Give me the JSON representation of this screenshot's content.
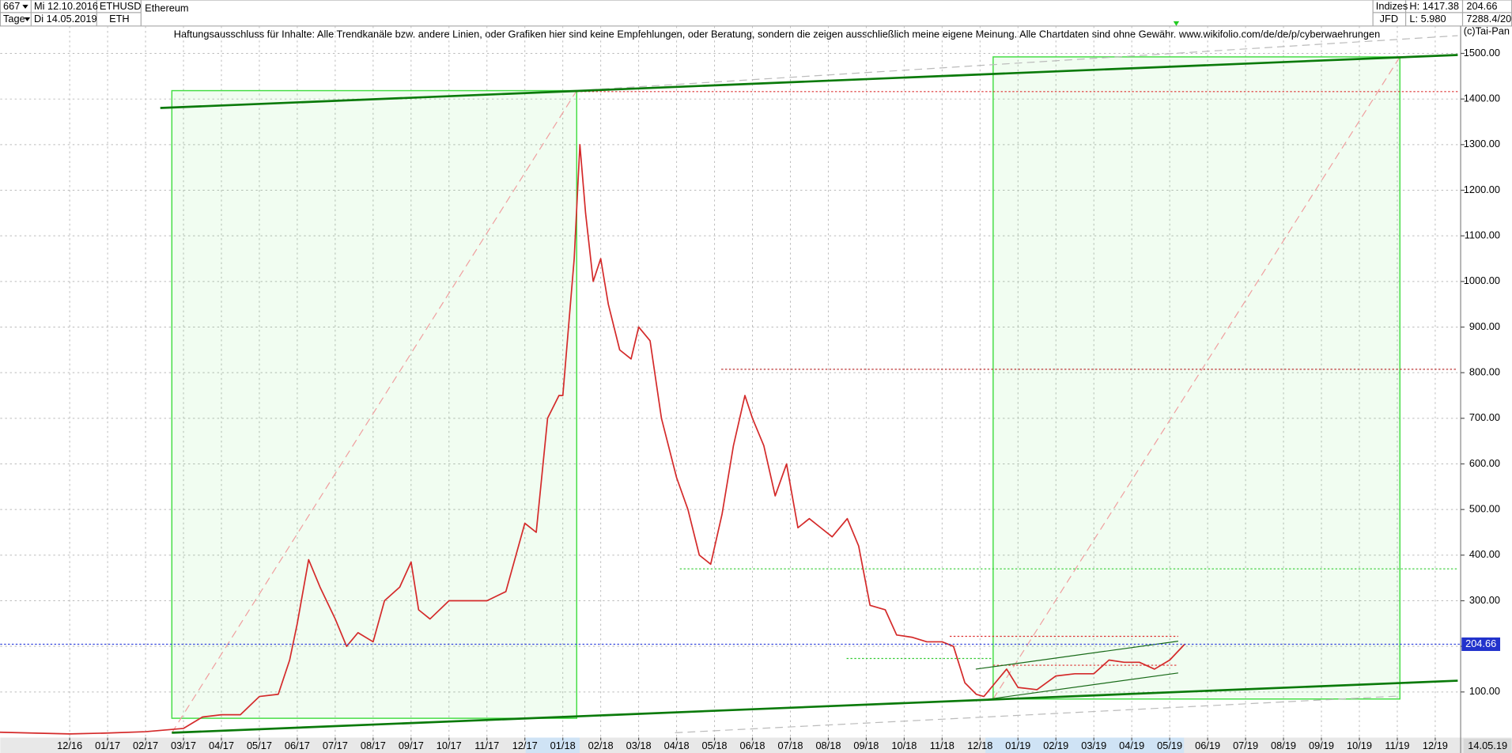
{
  "header": {
    "bars": "667",
    "start_date": "Mi 12.10.2016",
    "period": "Tage",
    "end_date": "Di 14.05.2019",
    "symbol": "ETHUSD",
    "short": "ETH",
    "name": "Ethereum",
    "market": "Indizes",
    "broker": "JFD",
    "high": "H: 1417.38",
    "low": "L: 5.980",
    "last": "204.66",
    "ratio": "7288.4/20",
    "copyright": "(c)Tai-Pan",
    "disclaimer": "Haftungsausschluss für Inhalte: Alle Trendkanäle bzw. andere Linien, oder Grafiken hier sind keine Empfehlungen, oder Beratung, sondern die zeigen ausschließlich meine eigene Meinung. Alle Chartdaten sind ohne Gewähr.  www.wikifolio.com/de/de/p/cyberwaehrungen"
  },
  "chart_data": {
    "type": "line",
    "color": "#d42a2a",
    "grid": true,
    "x": [
      -2,
      -1,
      0,
      1,
      2,
      3,
      3.5,
      4,
      4.5,
      5,
      5.5,
      5.8,
      6,
      6.3,
      6.6,
      7,
      7.3,
      7.6,
      8,
      8.3,
      8.7,
      9,
      9.2,
      9.5,
      10,
      10.5,
      11,
      11.5,
      12,
      12.3,
      12.6,
      12.9,
      13,
      13.3,
      13.45,
      13.6,
      13.8,
      14,
      14.2,
      14.5,
      14.8,
      15,
      15.3,
      15.6,
      16,
      16.3,
      16.6,
      16.9,
      17.2,
      17.5,
      17.8,
      18,
      18.3,
      18.6,
      18.9,
      19.2,
      19.5,
      19.8,
      20.1,
      20.5,
      20.8,
      21.1,
      21.5,
      21.8,
      22.2,
      22.6,
      23,
      23.3,
      23.6,
      23.9,
      24.1,
      24.4,
      24.7,
      25,
      25.5,
      26,
      26.5,
      27,
      27.4,
      27.8,
      28.2,
      28.6,
      29,
      29.4
    ],
    "values": [
      12,
      10,
      8,
      10,
      13,
      20,
      45,
      50,
      50,
      90,
      95,
      170,
      250,
      390,
      330,
      260,
      200,
      230,
      210,
      300,
      330,
      385,
      280,
      260,
      300,
      300,
      300,
      320,
      470,
      450,
      700,
      750,
      750,
      1050,
      1300,
      1150,
      1000,
      1050,
      950,
      850,
      830,
      900,
      870,
      700,
      570,
      500,
      400,
      380,
      490,
      640,
      750,
      700,
      640,
      530,
      600,
      460,
      480,
      460,
      440,
      480,
      420,
      290,
      280,
      225,
      220,
      210,
      210,
      200,
      120,
      95,
      90,
      120,
      150,
      110,
      105,
      135,
      140,
      140,
      170,
      165,
      165,
      150,
      170,
      205
    ],
    "xlim": [
      -1.83,
      36.67
    ],
    "xticks": [
      {
        "value": 0,
        "label": "12/16"
      },
      {
        "value": 1,
        "label": "01/17"
      },
      {
        "value": 2,
        "label": "02/17"
      },
      {
        "value": 3,
        "label": "03/17"
      },
      {
        "value": 4,
        "label": "04/17"
      },
      {
        "value": 5,
        "label": "05/17"
      },
      {
        "value": 6,
        "label": "06/17"
      },
      {
        "value": 7,
        "label": "07/17"
      },
      {
        "value": 8,
        "label": "08/17"
      },
      {
        "value": 9,
        "label": "09/17"
      },
      {
        "value": 10,
        "label": "10/17"
      },
      {
        "value": 11,
        "label": "11/17"
      },
      {
        "value": 12,
        "label": "12/17"
      },
      {
        "value": 13,
        "label": "01/18"
      },
      {
        "value": 14,
        "label": "02/18"
      },
      {
        "value": 15,
        "label": "03/18"
      },
      {
        "value": 16,
        "label": "04/18"
      },
      {
        "value": 17,
        "label": "05/18"
      },
      {
        "value": 18,
        "label": "06/18"
      },
      {
        "value": 19,
        "label": "07/18"
      },
      {
        "value": 20,
        "label": "08/18"
      },
      {
        "value": 21,
        "label": "09/18"
      },
      {
        "value": 22,
        "label": "10/18"
      },
      {
        "value": 23,
        "label": "11/18"
      },
      {
        "value": 24,
        "label": "12/18"
      },
      {
        "value": 25,
        "label": "01/19"
      },
      {
        "value": 26,
        "label": "02/19"
      },
      {
        "value": 27,
        "label": "03/19"
      },
      {
        "value": 28,
        "label": "04/19"
      },
      {
        "value": 29,
        "label": "05/19"
      },
      {
        "value": 30,
        "label": "06/19"
      },
      {
        "value": 31,
        "label": "07/19"
      },
      {
        "value": 32,
        "label": "08/19"
      },
      {
        "value": 33,
        "label": "09/19"
      },
      {
        "value": 34,
        "label": "10/19"
      },
      {
        "value": 35,
        "label": "11/19"
      },
      {
        "value": 36,
        "label": "12/19"
      }
    ],
    "cursor_date": "14.05.19",
    "ylim": [
      0,
      1560
    ],
    "yticks": [
      {
        "value": 100,
        "label": "100.00"
      },
      {
        "value": 200,
        "label": "200.00"
      },
      {
        "value": 300,
        "label": "300.00"
      },
      {
        "value": 400,
        "label": "400.00"
      },
      {
        "value": 500,
        "label": "500.00"
      },
      {
        "value": 600,
        "label": "600.00"
      },
      {
        "value": 700,
        "label": "700.00"
      },
      {
        "value": 800,
        "label": "800.00"
      },
      {
        "value": 900,
        "label": "900.00"
      },
      {
        "value": 1000,
        "label": "1000.00"
      },
      {
        "value": 1100,
        "label": "1100.00"
      },
      {
        "value": 1200,
        "label": "1200.00"
      },
      {
        "value": 1300,
        "label": "1300.00"
      },
      {
        "value": 1400,
        "label": "1400.00"
      },
      {
        "value": 1500,
        "label": "1500.00"
      }
    ],
    "last_value": 204.66
  }
}
